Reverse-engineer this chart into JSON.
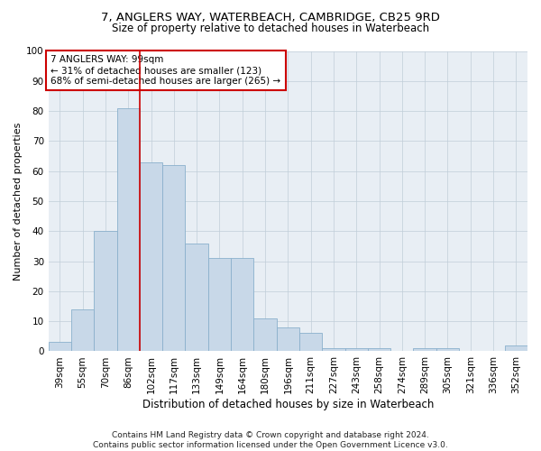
{
  "title1": "7, ANGLERS WAY, WATERBEACH, CAMBRIDGE, CB25 9RD",
  "title2": "Size of property relative to detached houses in Waterbeach",
  "xlabel": "Distribution of detached houses by size in Waterbeach",
  "ylabel": "Number of detached properties",
  "categories": [
    "39sqm",
    "55sqm",
    "70sqm",
    "86sqm",
    "102sqm",
    "117sqm",
    "133sqm",
    "149sqm",
    "164sqm",
    "180sqm",
    "196sqm",
    "211sqm",
    "227sqm",
    "243sqm",
    "258sqm",
    "274sqm",
    "289sqm",
    "305sqm",
    "321sqm",
    "336sqm",
    "352sqm"
  ],
  "values": [
    3,
    14,
    40,
    81,
    63,
    62,
    36,
    31,
    31,
    11,
    8,
    6,
    1,
    1,
    1,
    0,
    1,
    1,
    0,
    0,
    2
  ],
  "bar_color": "#c8d8e8",
  "bar_edge_color": "#8ab0cc",
  "vline_x_index": 4,
  "vline_color": "#cc0000",
  "annotation_text": "7 ANGLERS WAY: 99sqm\n← 31% of detached houses are smaller (123)\n68% of semi-detached houses are larger (265) →",
  "annotation_box_color": "#ffffff",
  "annotation_box_edge": "#cc0000",
  "ylim": [
    0,
    100
  ],
  "yticks": [
    0,
    10,
    20,
    30,
    40,
    50,
    60,
    70,
    80,
    90,
    100
  ],
  "footer": "Contains HM Land Registry data © Crown copyright and database right 2024.\nContains public sector information licensed under the Open Government Licence v3.0.",
  "bg_color": "#ffffff",
  "plot_bg_color": "#e8eef4",
  "grid_color": "#c0cdd8",
  "title1_fontsize": 9.5,
  "title2_fontsize": 8.5,
  "xlabel_fontsize": 8.5,
  "ylabel_fontsize": 8,
  "tick_fontsize": 7.5,
  "annot_fontsize": 7.5,
  "footer_fontsize": 6.5
}
